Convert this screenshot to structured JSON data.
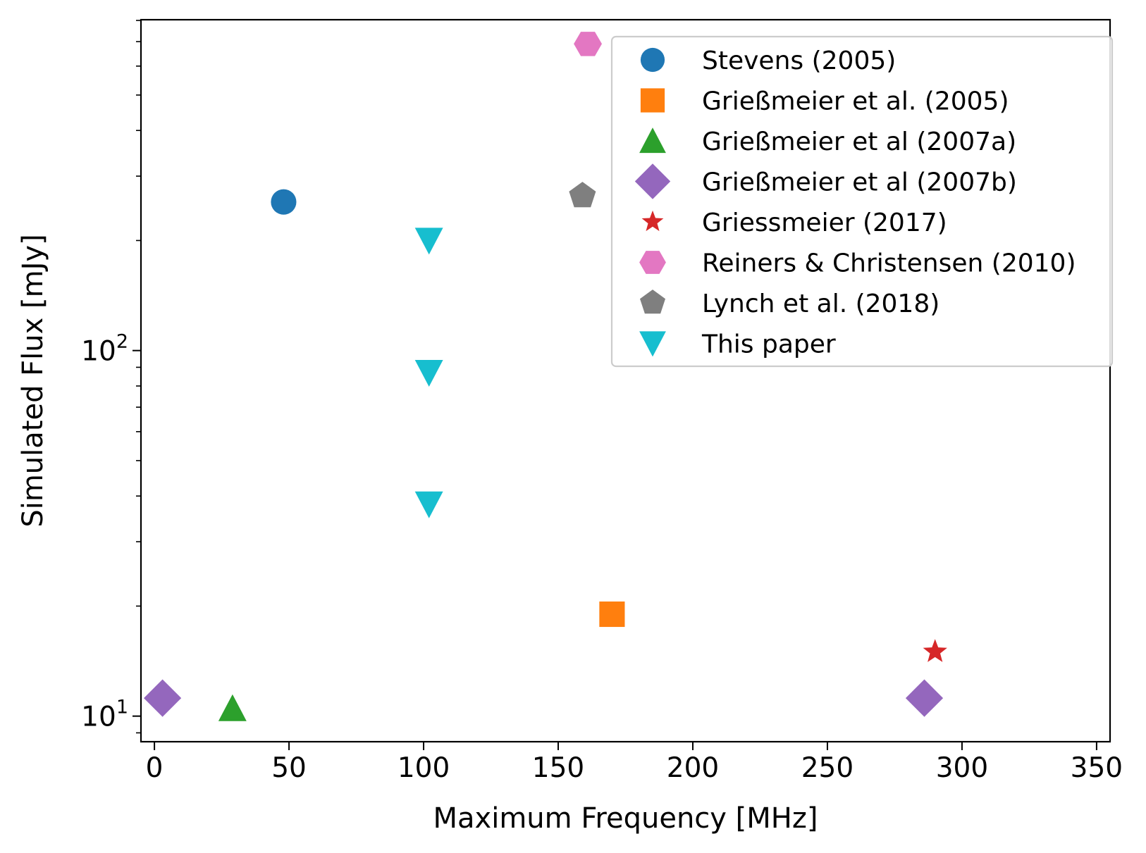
{
  "chart_data": {
    "type": "scatter",
    "title": "",
    "xlabel": "Maximum Frequency [MHz]",
    "ylabel": "Simulated Flux [mJy]",
    "xlim": [
      -5,
      355
    ],
    "ylim_log10": [
      0.93,
      2.905
    ],
    "x_ticks": [
      {
        "value": 0,
        "label": "0"
      },
      {
        "value": 50,
        "label": "50"
      },
      {
        "value": 100,
        "label": "100"
      },
      {
        "value": 150,
        "label": "150"
      },
      {
        "value": 200,
        "label": "200"
      },
      {
        "value": 250,
        "label": "250"
      },
      {
        "value": 300,
        "label": "300"
      },
      {
        "value": 350,
        "label": "350"
      }
    ],
    "y_major_ticks": [
      {
        "value": 10,
        "base": "10",
        "exp": "1"
      },
      {
        "value": 100,
        "base": "10",
        "exp": "2"
      }
    ],
    "y_minor_ticks": [
      9,
      20,
      30,
      40,
      50,
      60,
      70,
      80,
      90,
      200,
      300,
      400,
      500,
      600,
      700,
      800
    ],
    "grid": false,
    "legend_position": "top-right",
    "series": [
      {
        "name": "Stevens (2005)",
        "marker": "circle",
        "color": "#1f77b4",
        "points": [
          {
            "x": 48,
            "y": 255
          }
        ]
      },
      {
        "name": "Grießmeier et al. (2005)",
        "marker": "square",
        "color": "#ff7f0e",
        "points": [
          {
            "x": 170,
            "y": 19
          }
        ]
      },
      {
        "name": "Grießmeier et al (2007a)",
        "marker": "triangle-up",
        "color": "#2ca02c",
        "points": [
          {
            "x": 29,
            "y": 10.5
          }
        ]
      },
      {
        "name": "Grießmeier et al (2007b)",
        "marker": "diamond",
        "color": "#9467bd",
        "points": [
          {
            "x": 3,
            "y": 11.2
          },
          {
            "x": 286,
            "y": 11.2
          }
        ]
      },
      {
        "name": "Griessmeier (2017)",
        "marker": "star",
        "color": "#d62728",
        "points": [
          {
            "x": 290,
            "y": 15
          }
        ]
      },
      {
        "name": "Reiners & Christensen (2010)",
        "marker": "hexagon",
        "color": "#e377c2",
        "points": [
          {
            "x": 161,
            "y": 690
          }
        ]
      },
      {
        "name": "Lynch et al. (2018)",
        "marker": "pentagon",
        "color": "#7f7f7f",
        "points": [
          {
            "x": 159,
            "y": 265
          }
        ]
      },
      {
        "name": "This paper",
        "marker": "triangle-down",
        "color": "#17becf",
        "points": [
          {
            "x": 102,
            "y": 200
          },
          {
            "x": 102,
            "y": 87
          },
          {
            "x": 102,
            "y": 38
          }
        ]
      }
    ]
  }
}
